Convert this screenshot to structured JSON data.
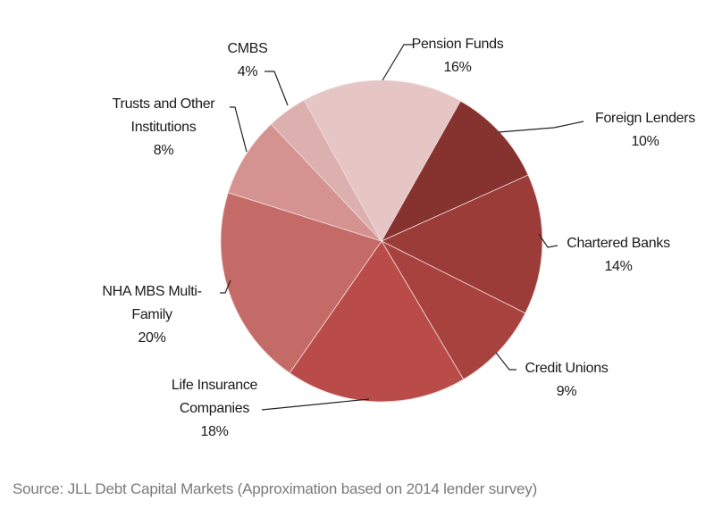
{
  "chart_data": {
    "type": "pie",
    "title": "",
    "start_angle_deg": -28.8,
    "direction": "clockwise",
    "slices": [
      {
        "label": "Pension Funds",
        "value": 16,
        "pct": "16%",
        "color": "#e6c5c5"
      },
      {
        "label": "Foreign Lenders",
        "value": 10,
        "pct": "10%",
        "color": "#863330"
      },
      {
        "label": "Chartered Banks",
        "value": 14,
        "pct": "14%",
        "color": "#9b3c39"
      },
      {
        "label": "Credit Unions",
        "value": 9,
        "pct": "9%",
        "color": "#a8423e"
      },
      {
        "label": "Life Insurance Companies",
        "value": 18,
        "pct": "18%",
        "color": "#b94c49"
      },
      {
        "label": "NHA MBS Multi-Family",
        "value": 20,
        "pct": "20%",
        "color": "#c56b67"
      },
      {
        "label": "Trusts and Other Institutions",
        "value": 8,
        "pct": "8%",
        "color": "#d49391"
      },
      {
        "label": "CMBS",
        "value": 4,
        "pct": "4%",
        "color": "#ddb0b0"
      }
    ],
    "label_lines": {
      "pension": [
        "Pension Funds"
      ],
      "foreign": [
        "Foreign Lenders"
      ],
      "chartered": [
        "Chartered Banks"
      ],
      "credit": [
        "Credit Unions"
      ],
      "life": [
        "Life Insurance",
        "Companies"
      ],
      "nha": [
        "NHA MBS Multi-",
        "Family"
      ],
      "trusts": [
        "Trusts and Other",
        "Institutions"
      ],
      "cmbs": [
        "CMBS"
      ]
    }
  },
  "source": "Source: JLL Debt Capital Markets (Approximation based on 2014 lender survey)"
}
